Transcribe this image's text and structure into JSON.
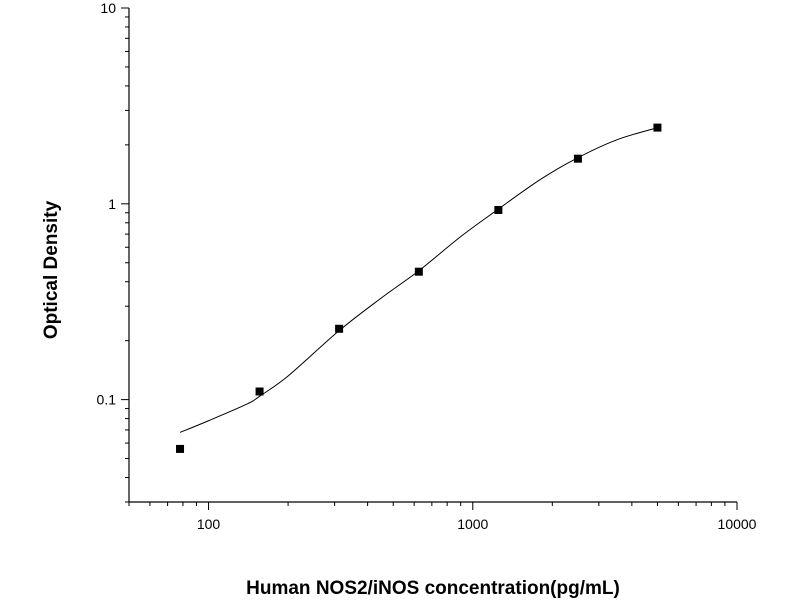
{
  "chart_data": {
    "type": "scatter",
    "xlabel": "Human NOS2/iNOS concentration(pg/mL)",
    "ylabel": "Optical Density",
    "xscale": "log",
    "yscale": "log",
    "xlim": [
      50,
      10000
    ],
    "ylim": [
      0.03,
      10
    ],
    "x_ticks": [
      100,
      1000,
      10000
    ],
    "x_tick_labels": [
      "100",
      "1000",
      "10000"
    ],
    "y_ticks": [
      0.1,
      1,
      10
    ],
    "y_tick_labels": [
      "0.1",
      "1",
      "10"
    ],
    "grid": false,
    "legend": "none",
    "series": [
      {
        "x": [
          78,
          156,
          312,
          625,
          1250,
          2500,
          5000
        ],
        "y": [
          0.056,
          0.11,
          0.23,
          0.45,
          0.93,
          1.7,
          2.45
        ],
        "marker": "square",
        "color": "#000000"
      }
    ],
    "fit_curve": {
      "x": [
        78,
        100,
        140,
        156,
        200,
        312,
        450,
        625,
        900,
        1250,
        1800,
        2500,
        3500,
        5000
      ],
      "y": [
        0.068,
        0.078,
        0.095,
        0.104,
        0.132,
        0.225,
        0.33,
        0.455,
        0.68,
        0.94,
        1.33,
        1.72,
        2.12,
        2.45
      ],
      "color": "#000000"
    }
  }
}
